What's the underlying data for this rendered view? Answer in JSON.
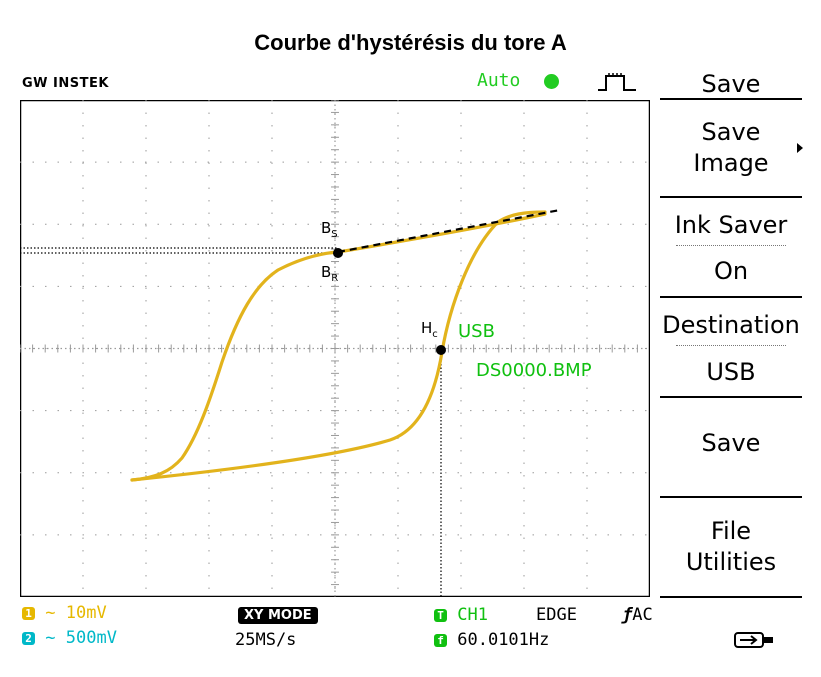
{
  "title": "Courbe d'hystérésis du tore A",
  "header": {
    "brand": "GW INSTEK",
    "trigger_mode": "Auto"
  },
  "screen": {
    "labels": {
      "bs": "B",
      "bs_sub": "S",
      "br": "B",
      "br_sub": "R",
      "hc": "H",
      "hc_sub": "c"
    },
    "save_dest": "USB",
    "save_file": "DS0000.BMP",
    "colors": {
      "trace": "#e2b31c",
      "grid": "#9a9a9a",
      "text_green": "#10c010"
    }
  },
  "menu": {
    "title": "Save",
    "save_image": [
      "Save",
      "Image"
    ],
    "ink_saver": {
      "label": "Ink Saver",
      "value": "On"
    },
    "destination": {
      "label": "Destination",
      "value": "USB"
    },
    "save": "Save",
    "file_utilities": [
      "File",
      "Utilities"
    ]
  },
  "status": {
    "ch1_num": "1",
    "ch1_scale": "10mV",
    "ch2_num": "2",
    "ch2_scale": "500mV",
    "mode": "XY MODE",
    "sample_rate": "25MS/s",
    "trig_num": "T",
    "trig_source": "CH1",
    "trig_type": "EDGE",
    "coupling": "AC",
    "freq_num": "f",
    "frequency": "60.0101Hz"
  }
}
